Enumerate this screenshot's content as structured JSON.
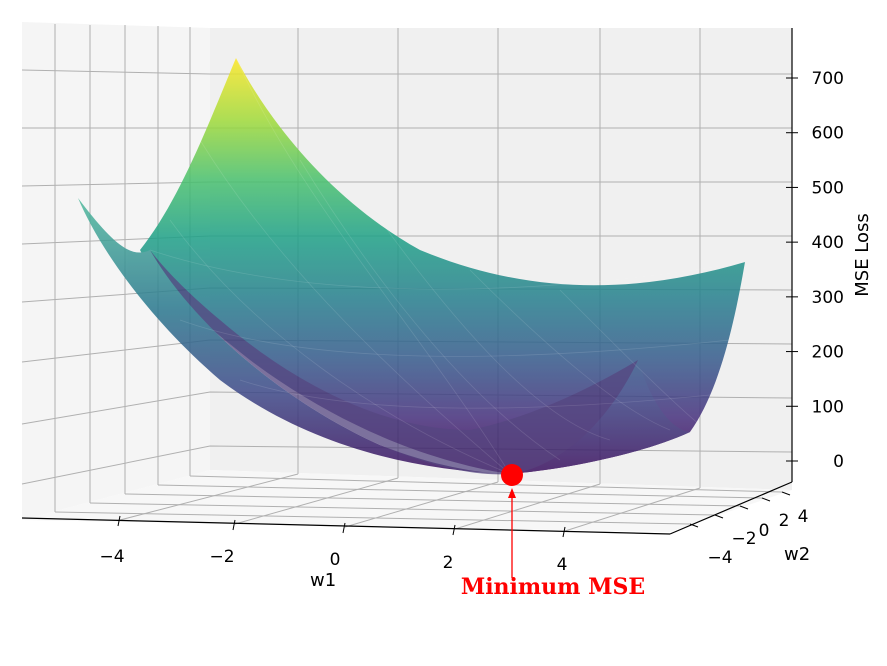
{
  "chart_data": {
    "type": "surface3d",
    "title": "",
    "xlabel": "w1",
    "ylabel": "w2",
    "zlabel": "MSE Loss",
    "x_ticks": [
      "−4",
      "−2",
      "0",
      "2",
      "4"
    ],
    "y_ticks": [
      "−4",
      "−2",
      "0",
      "2",
      "4"
    ],
    "z_ticks": [
      "0",
      "100",
      "200",
      "300",
      "400",
      "500",
      "600",
      "700"
    ],
    "xlim": [
      -5.5,
      5.5
    ],
    "ylim": [
      -5.5,
      5.5
    ],
    "zlim": [
      0,
      750
    ],
    "colormap": "viridis",
    "grid": true,
    "minimum": {
      "w1": 3.0,
      "w2": 2.0,
      "loss": 0
    },
    "annotation": {
      "text": "Minimum MSE",
      "color": "#ff0000"
    },
    "marker_color": "#ff0000"
  }
}
